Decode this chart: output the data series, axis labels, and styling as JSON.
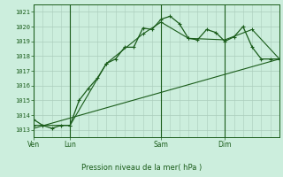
{
  "background_color": "#cceedd",
  "grid_color": "#aaccbb",
  "line_color": "#1a5c1a",
  "title": "Pression niveau de la mer( hPa )",
  "ylabel_values": [
    1013,
    1014,
    1015,
    1016,
    1017,
    1018,
    1019,
    1020,
    1021
  ],
  "ylim": [
    1012.5,
    1021.5
  ],
  "day_labels": [
    "Ven",
    "Lun",
    "Sam",
    "Dim"
  ],
  "day_positions": [
    0,
    4,
    14,
    21
  ],
  "xlim": [
    0,
    27
  ],
  "series1_x": [
    0,
    1,
    2,
    3,
    4,
    5,
    6,
    7,
    8,
    9,
    10,
    11,
    12,
    13,
    14,
    15,
    16,
    17,
    18,
    19,
    20,
    21,
    22,
    23,
    24,
    25,
    26,
    27
  ],
  "series1_y": [
    1013.7,
    1013.3,
    1013.1,
    1013.3,
    1013.3,
    1015.0,
    1015.8,
    1016.5,
    1017.5,
    1017.8,
    1018.6,
    1018.6,
    1019.9,
    1019.8,
    1020.5,
    1020.7,
    1020.2,
    1019.2,
    1019.1,
    1019.8,
    1019.6,
    1019.0,
    1019.3,
    1020.0,
    1018.6,
    1017.8,
    1017.8,
    1017.8
  ],
  "series2_x": [
    0,
    4,
    8,
    12,
    14,
    17,
    21,
    24,
    27
  ],
  "series2_y": [
    1013.3,
    1013.3,
    1017.5,
    1019.5,
    1020.3,
    1019.2,
    1019.1,
    1019.8,
    1017.8
  ],
  "series3_x": [
    0,
    27
  ],
  "series3_y": [
    1013.1,
    1017.8
  ],
  "figsize": [
    3.2,
    2.0
  ],
  "dpi": 100
}
